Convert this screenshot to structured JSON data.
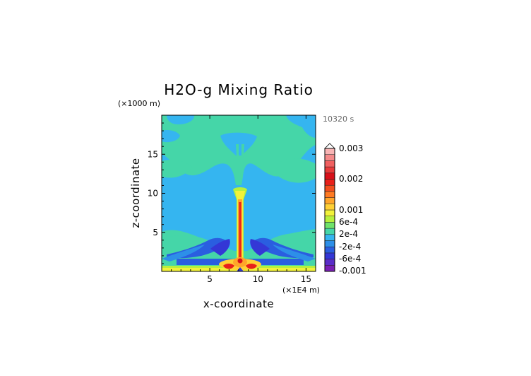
{
  "chart_data": {
    "type": "heatmap",
    "title": "H2O-g Mixing Ratio",
    "time_label": "10320 s",
    "xlabel": "x-coordinate",
    "ylabel": "z-coordinate",
    "x_unit": "(×1E4 m)",
    "y_unit": "(×1000 m)",
    "xlim": [
      0,
      16
    ],
    "ylim": [
      0,
      20
    ],
    "x_ticks": [
      5,
      10,
      15
    ],
    "y_ticks": [
      5,
      10,
      15
    ],
    "colorbar": {
      "labels": [
        {
          "text": "0.003",
          "value": 0.003
        },
        {
          "text": "0.002",
          "value": 0.002
        },
        {
          "text": "0.001",
          "value": 0.001
        },
        {
          "text": "6e-4",
          "value": 0.0006
        },
        {
          "text": "2e-4",
          "value": 0.0002
        },
        {
          "text": "-2e-4",
          "value": -0.0002
        },
        {
          "text": "-6e-4",
          "value": -0.0006
        },
        {
          "text": "-0.001",
          "value": -0.001
        }
      ],
      "colors": [
        "#7a1fb5",
        "#5a2dc8",
        "#3437d6",
        "#2a5ee0",
        "#2d8fe8",
        "#35b5f0",
        "#45d6a8",
        "#6fe36a",
        "#b8f03c",
        "#f2f23a",
        "#ffd035",
        "#ffa52a",
        "#ff7a22",
        "#f24e1e",
        "#e8201a",
        "#d8101a",
        "#e83a3a",
        "#f06060",
        "#f48a8a",
        "#f8b4b4"
      ]
    }
  }
}
